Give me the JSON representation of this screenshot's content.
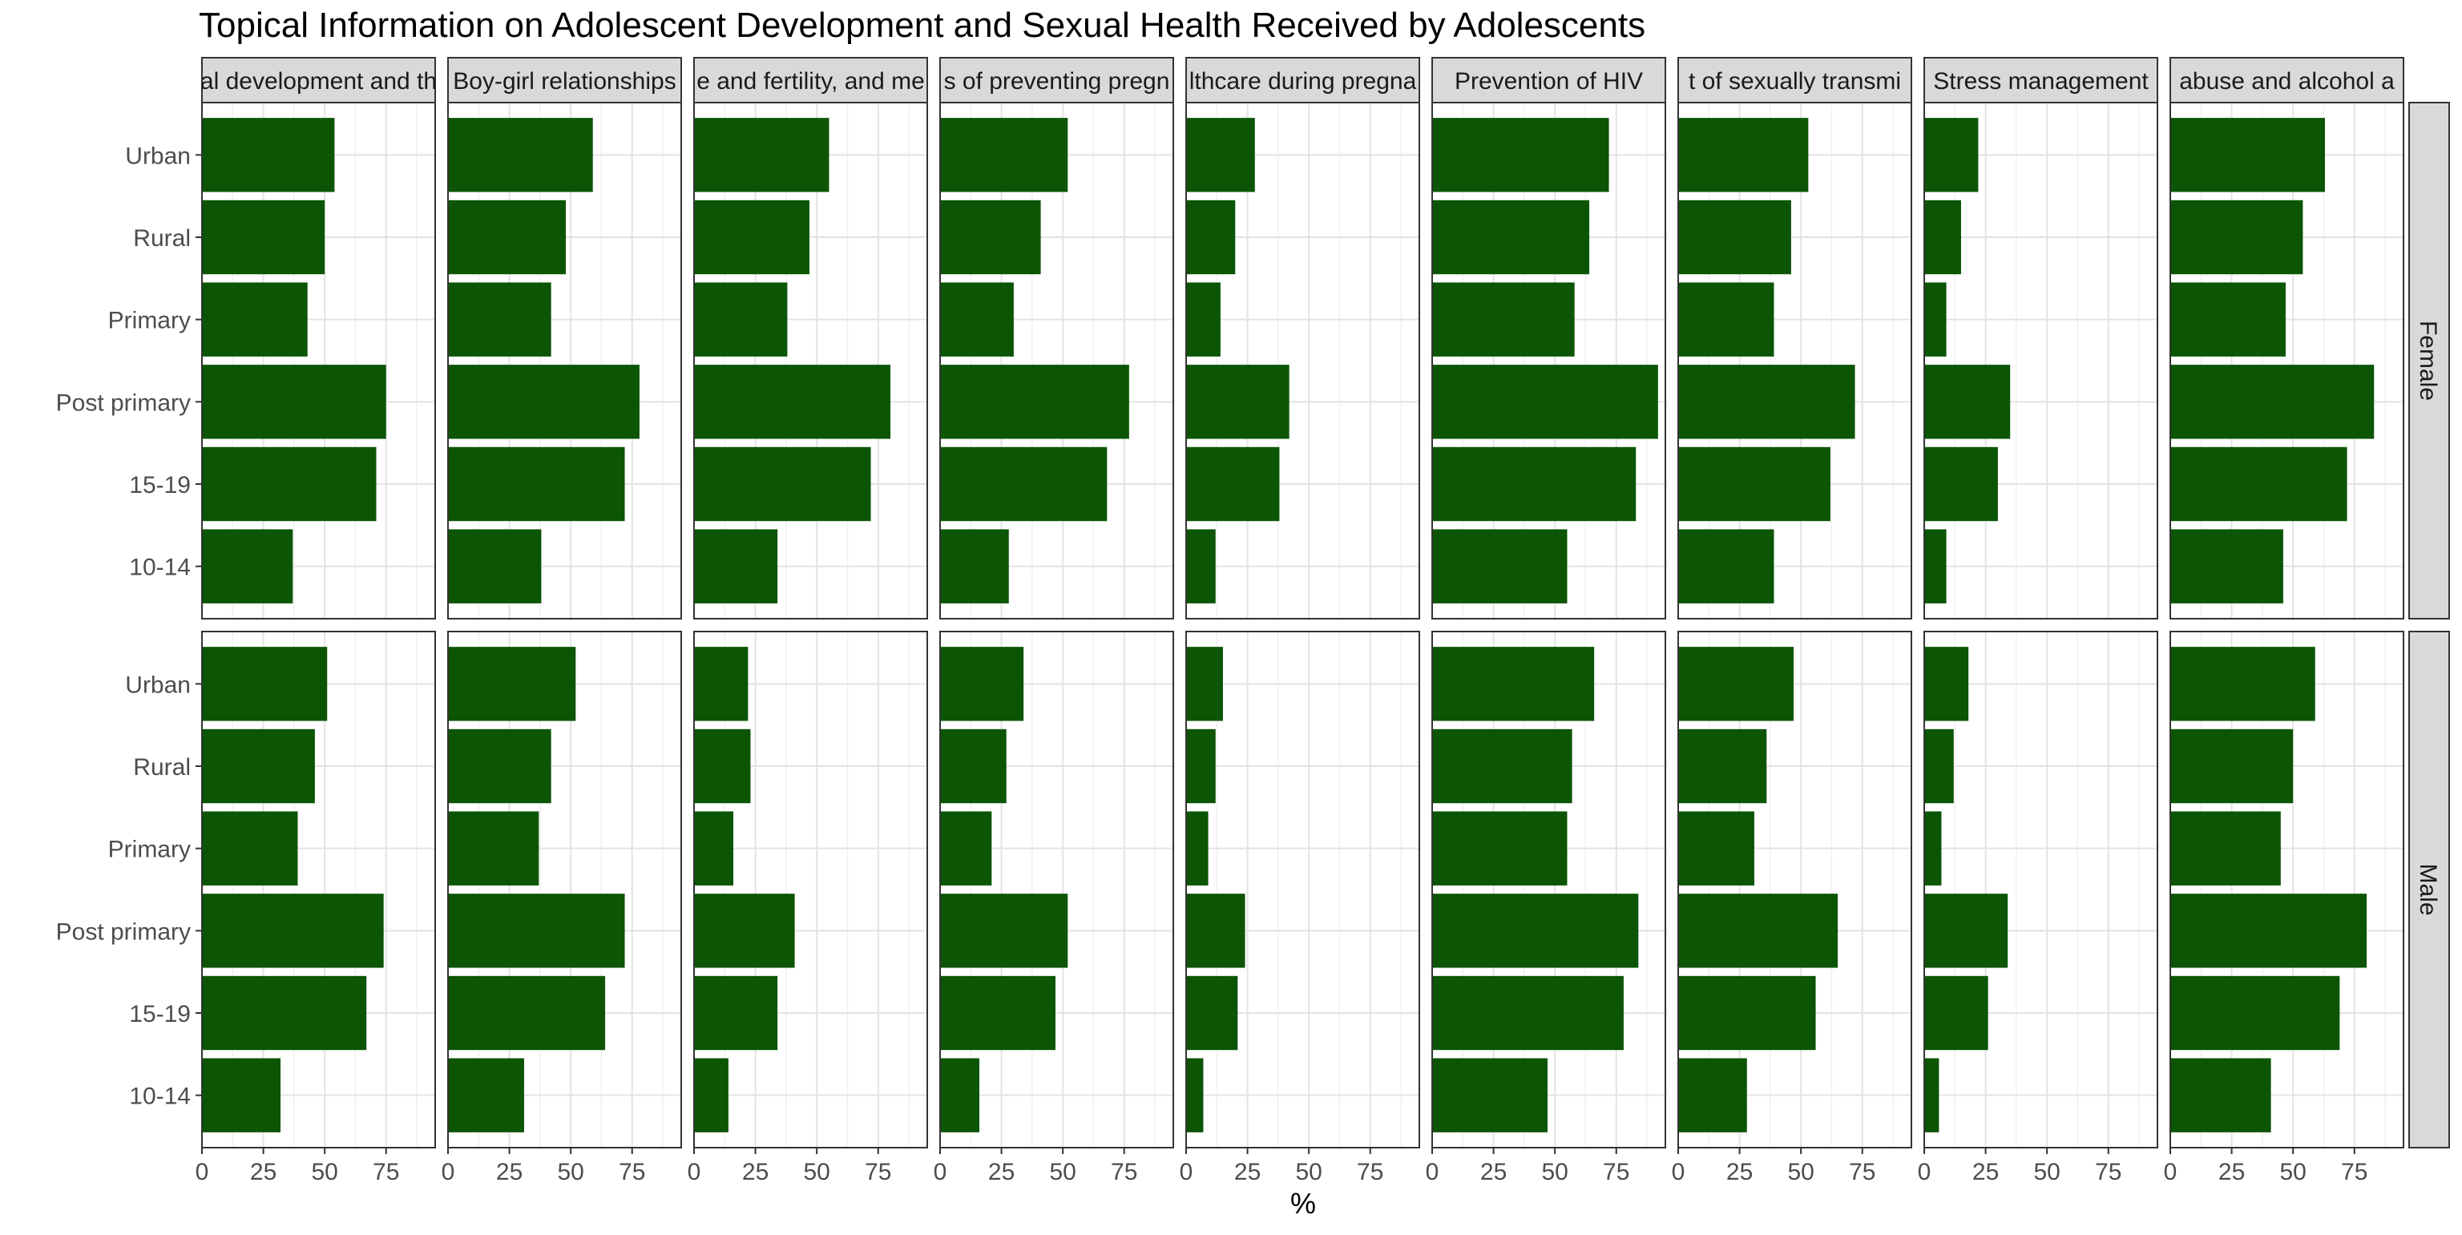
{
  "chart_data": {
    "type": "bar",
    "orientation": "horizontal",
    "title": "Topical Information on Adolescent Development and Sexual Health Received by Adolescents",
    "xlabel": "%",
    "ylabel": "",
    "xlim": [
      0,
      95
    ],
    "xticks": [
      0,
      25,
      50,
      75
    ],
    "grid": true,
    "bar_color": "#0b5504",
    "categories": [
      "Urban",
      "Rural",
      "Primary",
      "Post primary",
      "15-19",
      "10-14"
    ],
    "facet_columns": [
      "al development and th",
      "Boy-girl relationships",
      "e and fertility, and me",
      "s of preventing pregn",
      "lthcare during pregna",
      "Prevention of HIV",
      "t of sexually transmi",
      "Stress management",
      "abuse and alcohol a"
    ],
    "facet_rows": [
      "Female",
      "Male"
    ],
    "panels": [
      {
        "column": "al development and th",
        "row": "Female",
        "values": [
          54,
          50,
          43,
          75,
          71,
          37
        ]
      },
      {
        "column": "Boy-girl relationships",
        "row": "Female",
        "values": [
          59,
          48,
          42,
          78,
          72,
          38
        ]
      },
      {
        "column": "e and fertility, and me",
        "row": "Female",
        "values": [
          55,
          47,
          38,
          80,
          72,
          34
        ]
      },
      {
        "column": "s of preventing pregn",
        "row": "Female",
        "values": [
          52,
          41,
          30,
          77,
          68,
          28
        ]
      },
      {
        "column": "lthcare during pregna",
        "row": "Female",
        "values": [
          28,
          20,
          14,
          42,
          38,
          12
        ]
      },
      {
        "column": "Prevention of HIV",
        "row": "Female",
        "values": [
          72,
          64,
          58,
          92,
          83,
          55
        ]
      },
      {
        "column": "t of sexually transmi",
        "row": "Female",
        "values": [
          53,
          46,
          39,
          72,
          62,
          39
        ]
      },
      {
        "column": "Stress management",
        "row": "Female",
        "values": [
          22,
          15,
          9,
          35,
          30,
          9
        ]
      },
      {
        "column": "abuse and alcohol a",
        "row": "Female",
        "values": [
          63,
          54,
          47,
          83,
          72,
          46
        ]
      },
      {
        "column": "al development and th",
        "row": "Male",
        "values": [
          51,
          46,
          39,
          74,
          67,
          32
        ]
      },
      {
        "column": "Boy-girl relationships",
        "row": "Male",
        "values": [
          52,
          42,
          37,
          72,
          64,
          31
        ]
      },
      {
        "column": "e and fertility, and me",
        "row": "Male",
        "values": [
          22,
          23,
          16,
          41,
          34,
          14
        ]
      },
      {
        "column": "s of preventing pregn",
        "row": "Male",
        "values": [
          34,
          27,
          21,
          52,
          47,
          16
        ]
      },
      {
        "column": "lthcare during pregna",
        "row": "Male",
        "values": [
          15,
          12,
          9,
          24,
          21,
          7
        ]
      },
      {
        "column": "Prevention of HIV",
        "row": "Male",
        "values": [
          66,
          57,
          55,
          84,
          78,
          47
        ]
      },
      {
        "column": "t of sexually transmi",
        "row": "Male",
        "values": [
          47,
          36,
          31,
          65,
          56,
          28
        ]
      },
      {
        "column": "Stress management",
        "row": "Male",
        "values": [
          18,
          12,
          7,
          34,
          26,
          6
        ]
      },
      {
        "column": "abuse and alcohol a",
        "row": "Male",
        "values": [
          59,
          50,
          45,
          80,
          69,
          41
        ]
      }
    ]
  }
}
